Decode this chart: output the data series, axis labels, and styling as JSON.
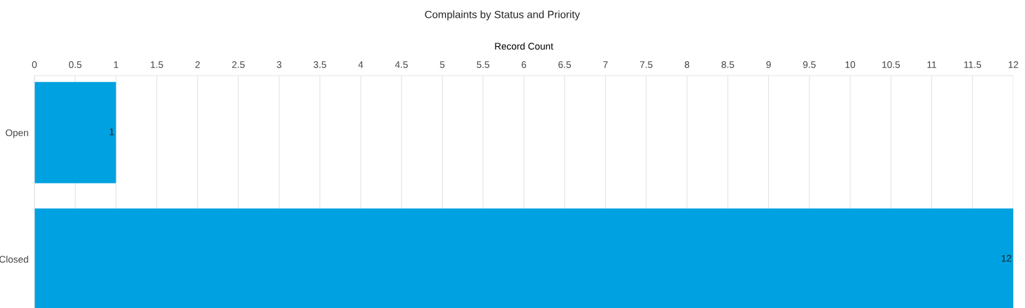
{
  "chart_data": {
    "type": "bar",
    "orientation": "horizontal",
    "title": "Complaints by Status and Priority",
    "xlabel": "Record Count",
    "categories": [
      "Open",
      "Closed"
    ],
    "values": [
      1,
      12
    ],
    "color": "#00a1e0",
    "xlim": [
      0,
      12
    ],
    "xticks": [
      0,
      0.5,
      1,
      1.5,
      2,
      2.5,
      3,
      3.5,
      4,
      4.5,
      5,
      5.5,
      6,
      6.5,
      7,
      7.5,
      8,
      8.5,
      9,
      9.5,
      10,
      10.5,
      11,
      11.5,
      12
    ],
    "grid": "x",
    "data_labels": true
  }
}
